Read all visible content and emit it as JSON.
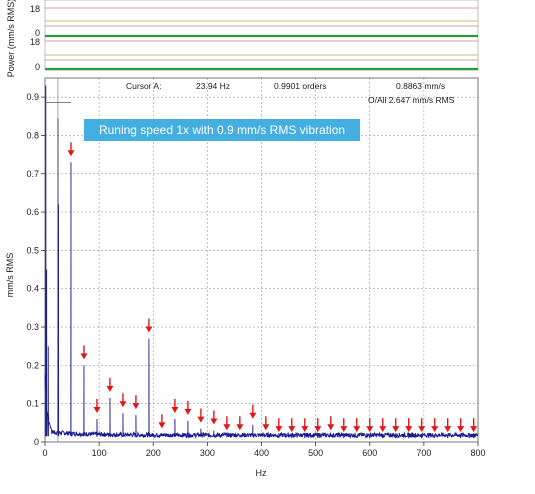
{
  "chart_data": {
    "type": "line",
    "xlabel": "Hz",
    "ylabel": "mm/s RMS",
    "xlim": [
      0,
      800
    ],
    "ylim": [
      0,
      0.95
    ],
    "x_ticks": [
      0,
      100,
      200,
      300,
      400,
      500,
      600,
      700,
      800
    ],
    "y_ticks": [
      0,
      0.1,
      0.2,
      0.3,
      0.4,
      0.5,
      0.6,
      0.7,
      0.8,
      0.9
    ],
    "grid": true,
    "series_color": "#1a1a8c",
    "peaks": [
      {
        "x": 1.5,
        "y": 0.93
      },
      {
        "x": 3,
        "y": 0.45
      },
      {
        "x": 6,
        "y": 0.25
      },
      {
        "x": 24,
        "y": 0.845
      },
      {
        "x": 25,
        "y": 0.62
      },
      {
        "x": 48,
        "y": 0.73
      },
      {
        "x": 72,
        "y": 0.2
      },
      {
        "x": 96,
        "y": 0.06
      },
      {
        "x": 120,
        "y": 0.115
      },
      {
        "x": 144,
        "y": 0.075
      },
      {
        "x": 168,
        "y": 0.07
      },
      {
        "x": 192,
        "y": 0.27
      },
      {
        "x": 216,
        "y": 0.02
      },
      {
        "x": 240,
        "y": 0.06
      },
      {
        "x": 264,
        "y": 0.055
      },
      {
        "x": 288,
        "y": 0.035
      },
      {
        "x": 312,
        "y": 0.03
      },
      {
        "x": 336,
        "y": 0.015
      },
      {
        "x": 360,
        "y": 0.015
      },
      {
        "x": 384,
        "y": 0.045
      },
      {
        "x": 408,
        "y": 0.015
      },
      {
        "x": 432,
        "y": 0.01
      },
      {
        "x": 456,
        "y": 0.01
      },
      {
        "x": 480,
        "y": 0.01
      },
      {
        "x": 504,
        "y": 0.01
      },
      {
        "x": 528,
        "y": 0.015
      },
      {
        "x": 552,
        "y": 0.01
      },
      {
        "x": 576,
        "y": 0.01
      },
      {
        "x": 600,
        "y": 0.01
      },
      {
        "x": 624,
        "y": 0.01
      },
      {
        "x": 648,
        "y": 0.01
      },
      {
        "x": 672,
        "y": 0.01
      },
      {
        "x": 696,
        "y": 0.01
      },
      {
        "x": 720,
        "y": 0.01
      },
      {
        "x": 744,
        "y": 0.01
      },
      {
        "x": 768,
        "y": 0.01
      },
      {
        "x": 792,
        "y": 0.01
      }
    ],
    "harmonic_arrows_hz": [
      48,
      72,
      96,
      120,
      144,
      168,
      192,
      216,
      240,
      264,
      288,
      312,
      336,
      360,
      384,
      408,
      432,
      456,
      480,
      504,
      528,
      552,
      576,
      600,
      624,
      648,
      672,
      696,
      720,
      744,
      768,
      792
    ],
    "arrow_color": "#e01818",
    "cursor": {
      "label": "Cursor A:",
      "hz": "23.94 Hz",
      "orders": "0.9901 orders",
      "amplitude": "0.8863 mm/s",
      "overall": "O/All 2.647 mm/s RMS",
      "x": 23.94,
      "y": 0.8863
    },
    "annotation": {
      "text": "Runing speed 1x with 0.9 mm/s RMS vibration",
      "bg": "#44aee0",
      "color": "#ffffff"
    }
  },
  "top_panel": {
    "ylabel": "Power (mm/s RMS)",
    "tick_labels": [
      "18",
      "0",
      "18",
      "0"
    ]
  }
}
